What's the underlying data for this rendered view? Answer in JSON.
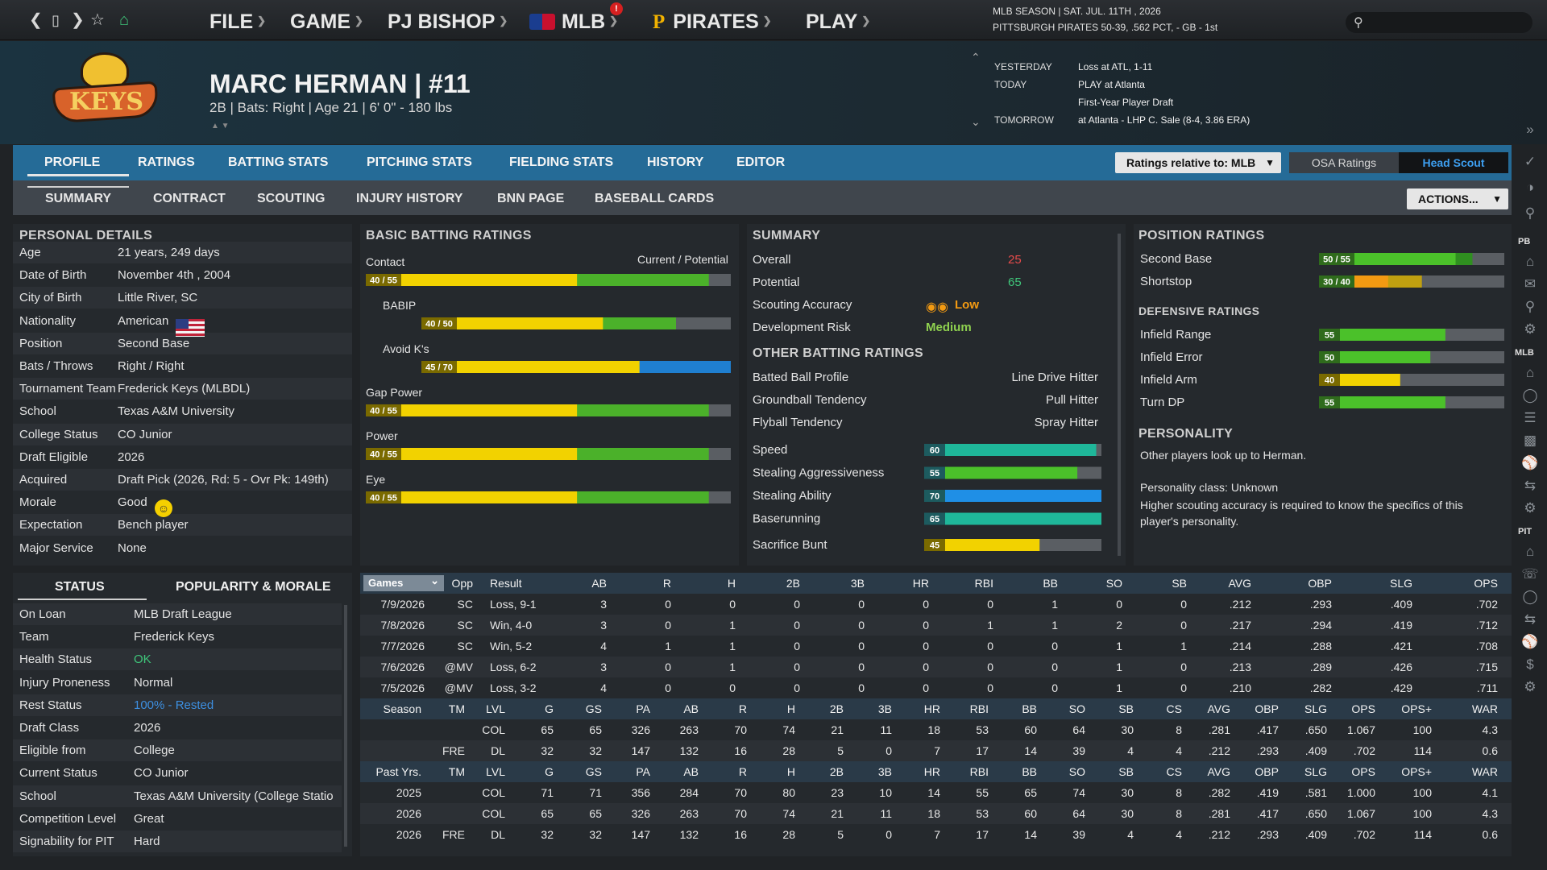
{
  "nav": {
    "menu": [
      {
        "label": "FILE"
      },
      {
        "label": "GAME"
      },
      {
        "label": "PJ BISHOP"
      },
      {
        "label": "MLB",
        "badge": "!"
      },
      {
        "label": "PIRATES"
      },
      {
        "label": "PLAY"
      }
    ],
    "season_line1": "MLB SEASON  |  SAT. JUL. 11TH , 2026",
    "season_line2": "PITTSBURGH PIRATES  50-39, .562 PCT, - GB - 1st",
    "search_placeholder": ""
  },
  "player": {
    "name": "MARC HERMAN  |  #11",
    "subtitle": "2B | Bats: Right  |  Age 21  |  6' 0\" - 180 lbs",
    "team_logo_text": "KEYS"
  },
  "schedule": {
    "rows": [
      {
        "label": "YESTERDAY",
        "value": "Loss at ATL, 1-11"
      },
      {
        "label": "TODAY",
        "value": "PLAY at Atlanta"
      },
      {
        "label": "",
        "value": "First-Year Player Draft"
      },
      {
        "label": "TOMORROW",
        "value": "at Atlanta - LHP C. Sale (8-4, 3.86 ERA)"
      }
    ]
  },
  "tabs_main": [
    "PROFILE",
    "RATINGS",
    "BATTING STATS",
    "PITCHING STATS",
    "FIELDING STATS",
    "HISTORY",
    "EDITOR"
  ],
  "tabs_sub": [
    "SUMMARY",
    "CONTRACT",
    "SCOUTING",
    "INJURY HISTORY",
    "BNN PAGE",
    "BASEBALL CARDS"
  ],
  "controls": {
    "ratings_relative": "Ratings relative to: MLB",
    "osa": "OSA Ratings",
    "head_scout": "Head Scout",
    "actions": "ACTIONS..."
  },
  "personal": {
    "title": "PERSONAL DETAILS",
    "rows": [
      {
        "label": "Age",
        "value": "21 years, 249 days"
      },
      {
        "label": "Date of Birth",
        "value": "November 4th , 2004"
      },
      {
        "label": "City of Birth",
        "value": "Little River, SC"
      },
      {
        "label": "Nationality",
        "value": "American"
      },
      {
        "label": "Position",
        "value": "Second Base"
      },
      {
        "label": "Bats / Throws",
        "value": "Right / Right"
      },
      {
        "label": "Tournament Team",
        "value": "Frederick Keys (MLBDL)"
      },
      {
        "label": "School",
        "value": "Texas A&M University"
      },
      {
        "label": "College Status",
        "value": "CO Junior"
      },
      {
        "label": "Draft Eligible",
        "value": "2026"
      },
      {
        "label": "Acquired",
        "value": "Draft Pick (2026, Rd: 5 - Ovr Pk: 149th)"
      },
      {
        "label": "Morale",
        "value": "Good"
      },
      {
        "label": "Expectation",
        "value": "Bench player"
      },
      {
        "label": "Major Service",
        "value": "None"
      }
    ]
  },
  "status": {
    "tabs": [
      "STATUS",
      "POPULARITY & MORALE"
    ],
    "rows": [
      {
        "label": "On Loan",
        "value": "MLB Draft League"
      },
      {
        "label": "Team",
        "value": "Frederick Keys"
      },
      {
        "label": "Health Status",
        "value": "OK",
        "color": "#3fc67a"
      },
      {
        "label": "Injury Proneness",
        "value": "Normal"
      },
      {
        "label": "Rest Status",
        "value": "100% - Rested",
        "color": "#3d8fe0"
      },
      {
        "label": "Draft Class",
        "value": "2026"
      },
      {
        "label": "Eligible from",
        "value": "College"
      },
      {
        "label": "Current Status",
        "value": "CO Junior"
      },
      {
        "label": "School",
        "value": "Texas A&M University (College Statio"
      },
      {
        "label": "Competition Level",
        "value": "Great"
      },
      {
        "label": "Signability for PIT",
        "value": "Hard"
      }
    ]
  },
  "batting": {
    "title": "BASIC BATTING RATINGS",
    "header_right": "Current / Potential",
    "rows": [
      {
        "label": "Contact",
        "badge": "40 / 55",
        "current": 40,
        "potential": 55,
        "pot_color": "#4bb12a",
        "indent": false
      },
      {
        "label": "BABIP",
        "badge": "40 / 50",
        "current": 40,
        "potential": 50,
        "pot_color": "#4bb12a",
        "indent": true
      },
      {
        "label": "Avoid K's",
        "badge": "45 / 70",
        "current": 45,
        "potential": 70,
        "pot_color": "#1f7fd0",
        "indent": true
      },
      {
        "label": "Gap Power",
        "badge": "40 / 55",
        "current": 40,
        "potential": 55,
        "pot_color": "#4bb12a",
        "indent": false
      },
      {
        "label": "Power",
        "badge": "40 / 55",
        "current": 40,
        "potential": 55,
        "pot_color": "#4bb12a",
        "indent": false
      },
      {
        "label": "Eye",
        "badge": "40 / 55",
        "current": 40,
        "potential": 55,
        "pot_color": "#4bb12a",
        "indent": false
      }
    ]
  },
  "summary": {
    "title": "SUMMARY",
    "overall_label": "Overall",
    "overall": "25",
    "potential_label": "Potential",
    "potential": "65",
    "accuracy_label": "Scouting Accuracy",
    "accuracy": "Low",
    "risk_label": "Development Risk",
    "risk": "Medium",
    "other_title": "OTHER BATTING RATINGS",
    "other": [
      {
        "label": "Batted Ball Profile",
        "value": "Line Drive Hitter"
      },
      {
        "label": "Groundball Tendency",
        "value": "Pull Hitter"
      },
      {
        "label": "Flyball Tendency",
        "value": "Spray Hitter"
      }
    ],
    "bars": [
      {
        "label": "Speed",
        "value": 60,
        "badge": "60",
        "color": "#1fb79a"
      },
      {
        "label": "Stealing Aggressiveness",
        "value": 55,
        "badge": "55",
        "color": "#4bc12a"
      },
      {
        "label": "Stealing Ability",
        "value": 70,
        "badge": "70",
        "color": "#1f8fe6"
      },
      {
        "label": "Baserunning",
        "value": 65,
        "badge": "65",
        "color": "#1fb79a"
      },
      {
        "label": "Sacrifice Bunt",
        "value": 45,
        "badge": "45",
        "color": "#f2d200"
      }
    ]
  },
  "positions": {
    "title": "POSITION RATINGS",
    "rows": [
      {
        "label": "Second Base",
        "badge": "50 / 55",
        "current": 50,
        "potential": 55,
        "cur_color": "#4bc12a",
        "pot_color": "#2f8f20"
      },
      {
        "label": "Shortstop",
        "badge": "30 / 40",
        "current": 30,
        "potential": 40,
        "cur_color": "#f39a12",
        "pot_color": "#c0a010"
      }
    ],
    "def_title": "DEFENSIVE RATINGS",
    "def": [
      {
        "label": "Infield Range",
        "value": 55,
        "badge": "55",
        "color": "#4bc12a"
      },
      {
        "label": "Infield Error",
        "value": 50,
        "badge": "50",
        "color": "#4bc12a"
      },
      {
        "label": "Infield Arm",
        "value": 40,
        "badge": "40",
        "color": "#f2d200"
      },
      {
        "label": "Turn DP",
        "value": 55,
        "badge": "55",
        "color": "#4bc12a"
      }
    ],
    "personality_title": "PERSONALITY",
    "personality_line1": "Other players look up to Herman.",
    "personality_line2": "Personality class: Unknown",
    "personality_line3": "Higher scouting accuracy is required to know the specifics of this player's personality."
  },
  "games": {
    "select": "Games",
    "headers": [
      "Opp",
      "Result",
      "AB",
      "R",
      "H",
      "2B",
      "3B",
      "HR",
      "RBI",
      "BB",
      "SO",
      "SB",
      "AVG",
      "OBP",
      "SLG",
      "OPS"
    ],
    "rows": [
      [
        "7/9/2026",
        "SC",
        "Loss, 9-1",
        "3",
        "0",
        "0",
        "0",
        "0",
        "0",
        "0",
        "1",
        "0",
        "0",
        ".212",
        ".293",
        ".409",
        ".702"
      ],
      [
        "7/8/2026",
        "SC",
        "Win, 4-0",
        "3",
        "0",
        "1",
        "0",
        "0",
        "0",
        "1",
        "1",
        "2",
        "0",
        ".217",
        ".294",
        ".419",
        ".712"
      ],
      [
        "7/7/2026",
        "SC",
        "Win, 5-2",
        "4",
        "1",
        "1",
        "0",
        "0",
        "0",
        "0",
        "0",
        "1",
        "1",
        ".214",
        ".288",
        ".421",
        ".708"
      ],
      [
        "7/6/2026",
        "@MV",
        "Loss, 6-2",
        "3",
        "0",
        "1",
        "0",
        "0",
        "0",
        "0",
        "0",
        "1",
        "0",
        ".213",
        ".289",
        ".426",
        ".715"
      ],
      [
        "7/5/2026",
        "@MV",
        "Loss, 3-2",
        "4",
        "0",
        "0",
        "0",
        "0",
        "0",
        "0",
        "0",
        "1",
        "0",
        ".210",
        ".282",
        ".429",
        ".711"
      ]
    ]
  },
  "season": {
    "headers": [
      "Season",
      "TM",
      "LVL",
      "G",
      "GS",
      "PA",
      "AB",
      "R",
      "H",
      "2B",
      "3B",
      "HR",
      "RBI",
      "BB",
      "SO",
      "SB",
      "CS",
      "AVG",
      "OBP",
      "SLG",
      "OPS",
      "OPS+",
      "WAR"
    ],
    "rows": [
      [
        "",
        "",
        "COL",
        "65",
        "65",
        "326",
        "263",
        "70",
        "74",
        "21",
        "11",
        "18",
        "53",
        "60",
        "64",
        "30",
        "8",
        ".281",
        ".417",
        ".650",
        "1.067",
        "100",
        "4.3"
      ],
      [
        "",
        "FRE",
        "DL",
        "32",
        "32",
        "147",
        "132",
        "16",
        "28",
        "5",
        "0",
        "7",
        "17",
        "14",
        "39",
        "4",
        "4",
        ".212",
        ".293",
        ".409",
        ".702",
        "114",
        "0.6"
      ]
    ]
  },
  "past": {
    "headers": [
      "Past Yrs.",
      "TM",
      "LVL",
      "G",
      "GS",
      "PA",
      "AB",
      "R",
      "H",
      "2B",
      "3B",
      "HR",
      "RBI",
      "BB",
      "SO",
      "SB",
      "CS",
      "AVG",
      "OBP",
      "SLG",
      "OPS",
      "OPS+",
      "WAR"
    ],
    "rows": [
      [
        "2025",
        "",
        "COL",
        "71",
        "71",
        "356",
        "284",
        "70",
        "80",
        "23",
        "10",
        "14",
        "55",
        "65",
        "74",
        "30",
        "8",
        ".282",
        ".419",
        ".581",
        "1.000",
        "100",
        "4.1"
      ],
      [
        "2026",
        "",
        "COL",
        "65",
        "65",
        "326",
        "263",
        "70",
        "74",
        "21",
        "11",
        "18",
        "53",
        "60",
        "64",
        "30",
        "8",
        ".281",
        ".417",
        ".650",
        "1.067",
        "100",
        "4.3"
      ],
      [
        "2026",
        "FRE",
        "DL",
        "32",
        "32",
        "147",
        "132",
        "16",
        "28",
        "5",
        "0",
        "7",
        "17",
        "14",
        "39",
        "4",
        "4",
        ".212",
        ".293",
        ".409",
        ".702",
        "114",
        "0.6"
      ]
    ]
  },
  "rail": {
    "pb": "PB",
    "mlb": "MLB",
    "pit": "PIT"
  }
}
